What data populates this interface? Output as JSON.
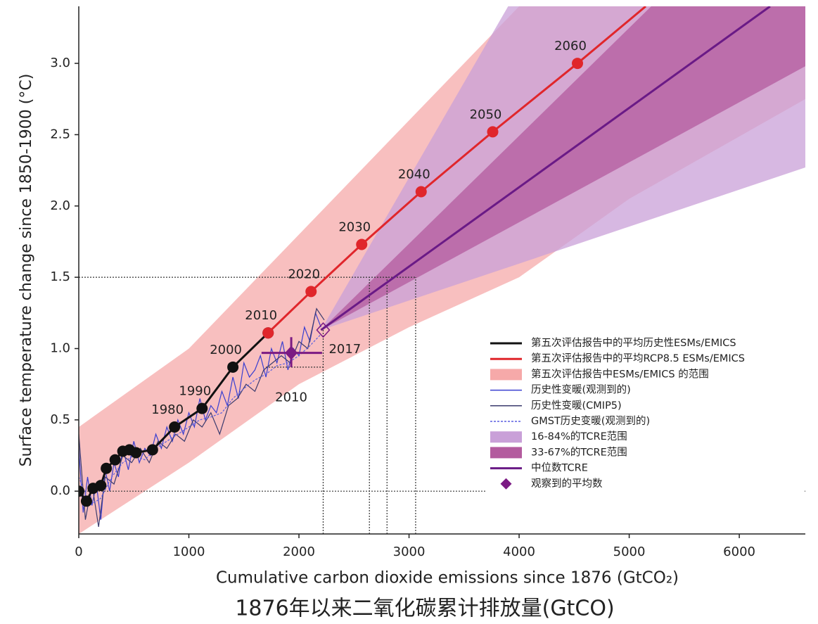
{
  "chart_data": {
    "type": "line",
    "ylabel": "Surface temperature change since 1850-1900 (°C)",
    "xlabel": "Cumulative carbon dioxide emissions since 1876 (GtCO₂)",
    "caption": "1876年以来二氧化碳累计排放量(GtCO)",
    "xlim": [
      0,
      6600
    ],
    "ylim": [
      -0.3,
      3.4
    ],
    "xticks": [
      0,
      1000,
      2000,
      3000,
      4000,
      5000,
      6000
    ],
    "yticks": [
      {
        "value": 0,
        "label": "0.0"
      },
      0.5,
      {
        "value": 1,
        "label": "1.0"
      },
      1.5,
      {
        "value": 2,
        "label": "2.0"
      },
      2.5,
      {
        "value": 3,
        "label": "3.0"
      }
    ],
    "series": [
      {
        "name": "第五次评估报告中的平均历史性ESMs/EMICS",
        "kind": "line",
        "color": "#111111",
        "x": [
          0,
          70,
          130,
          200,
          250,
          330,
          400,
          460,
          520,
          670,
          870,
          1120,
          1400,
          1720
        ],
        "y": [
          0,
          -0.07,
          0.02,
          0.04,
          0.16,
          0.22,
          0.28,
          0.29,
          0.27,
          0.29,
          0.45,
          0.58,
          0.87,
          1.11
        ],
        "point_labels": [
          null,
          null,
          null,
          null,
          null,
          null,
          null,
          null,
          null,
          null,
          "1980",
          "1990",
          "2000",
          null
        ]
      },
      {
        "name": "第五次评估报告中的平均RCP8.5 ESMs/EMICS",
        "kind": "line",
        "color": "#e0262b",
        "x": [
          1720,
          2110,
          2570,
          3110,
          3760,
          4530,
          5150
        ],
        "y": [
          1.11,
          1.4,
          1.73,
          2.1,
          2.52,
          3.0,
          3.4
        ],
        "point_labels": [
          "2010",
          "2020",
          "2030",
          "2040",
          "2050",
          "2060",
          null
        ]
      },
      {
        "name": "第五次评估报告中ESMs/EMICS 的范围",
        "kind": "band",
        "color": "#f6a9a9",
        "x": [
          0,
          1000,
          2000,
          3000,
          4000,
          5000,
          6600
        ],
        "upper": [
          0.45,
          1.0,
          1.8,
          2.6,
          3.4,
          3.4,
          3.4
        ],
        "lower": [
          -0.3,
          0.2,
          0.75,
          1.15,
          1.5,
          2.05,
          2.75
        ]
      },
      {
        "name": "历史性变暖(观测到的)",
        "kind": "thin",
        "color": "#3a3fd0",
        "x": [
          0,
          40,
          80,
          120,
          160,
          200,
          240,
          280,
          320,
          360,
          400,
          450,
          500,
          550,
          600,
          650,
          700,
          750,
          800,
          850,
          900,
          950,
          1000,
          1050,
          1100,
          1150,
          1200,
          1250,
          1300,
          1350,
          1400,
          1450,
          1500,
          1550,
          1600,
          1650,
          1700,
          1750,
          1800,
          1850,
          1900,
          1950,
          2000,
          2050,
          2100,
          2150,
          2200
        ],
        "y": [
          0.3,
          -0.15,
          0.1,
          -0.1,
          0.05,
          -0.2,
          0.15,
          0,
          0.2,
          0.1,
          0.3,
          0.15,
          0.35,
          0.2,
          0.3,
          0.25,
          0.4,
          0.3,
          0.45,
          0.35,
          0.5,
          0.4,
          0.55,
          0.45,
          0.65,
          0.5,
          0.6,
          0.55,
          0.7,
          0.6,
          0.8,
          0.65,
          0.9,
          0.8,
          0.85,
          0.95,
          0.8,
          1.0,
          0.9,
          1.05,
          0.85,
          1.0,
          0.95,
          1.15,
          1.05,
          1.25,
          1.15
        ]
      },
      {
        "name": "历史性变暖(CMIP5)",
        "kind": "thin",
        "color": "#3b3b6e",
        "x": [
          0,
          60,
          120,
          180,
          240,
          320,
          400,
          480,
          560,
          640,
          720,
          800,
          880,
          960,
          1040,
          1120,
          1200,
          1280,
          1360,
          1440,
          1520,
          1600,
          1680,
          1760,
          1840,
          1920,
          2000,
          2080,
          2160,
          2230
        ],
        "y": [
          0.4,
          -0.2,
          0.05,
          -0.25,
          0.1,
          0.05,
          0.25,
          0.2,
          0.3,
          0.2,
          0.35,
          0.3,
          0.4,
          0.35,
          0.5,
          0.45,
          0.55,
          0.4,
          0.6,
          0.65,
          0.75,
          0.7,
          0.85,
          0.9,
          0.95,
          0.9,
          1.05,
          1.0,
          1.28,
          1.2
        ]
      },
      {
        "name": "GMST历史变暖(观测到的)",
        "kind": "dashed",
        "color": "#5a5fe0",
        "x": [
          0,
          100,
          200,
          300,
          400,
          500,
          600,
          700,
          800,
          900,
          1000,
          1100,
          1200,
          1300,
          1400,
          1500,
          1600,
          1700,
          1800,
          1900,
          2000,
          2100,
          2200
        ],
        "y": [
          0.1,
          -0.1,
          -0.05,
          0.1,
          0.2,
          0.25,
          0.22,
          0.3,
          0.35,
          0.4,
          0.45,
          0.5,
          0.52,
          0.55,
          0.65,
          0.72,
          0.78,
          0.82,
          0.88,
          0.9,
          0.95,
          1.02,
          1.1
        ]
      },
      {
        "name": "16-84%的TCRE范围",
        "kind": "band",
        "color": "#c9a0d8",
        "x": [
          2200,
          3900,
          6600
        ],
        "upper": [
          1.13,
          3.4,
          3.4
        ],
        "lower": [
          1.13,
          1.57,
          2.27
        ]
      },
      {
        "name": "33-67%的TCRE范围",
        "kind": "band",
        "color": "#b35b9e",
        "x": [
          2200,
          5200,
          6600
        ],
        "upper": [
          1.13,
          3.4,
          3.4
        ],
        "lower": [
          1.13,
          2.39,
          2.98
        ]
      },
      {
        "name": "中位数TCRE",
        "kind": "line",
        "color": "#6a1a86",
        "x": [
          2200,
          6280
        ],
        "y": [
          1.13,
          3.4
        ]
      },
      {
        "name": "观察到的平均数",
        "kind": "diamond",
        "color": "#7b1a83",
        "x": 1930,
        "y": 0.97,
        "x_range": [
          1660,
          2210
        ],
        "y_range": [
          0.87,
          1.08
        ],
        "label": "2010"
      }
    ],
    "open_marker": {
      "x": 2220,
      "y": 1.13,
      "label": "2017",
      "color": "#7b1a83"
    },
    "reference_lines": [
      {
        "x": [
          0,
          3060
        ],
        "y": [
          1.5,
          1.5
        ]
      },
      {
        "x": [
          0,
          6600
        ],
        "y": [
          0,
          0
        ]
      },
      {
        "x": [
          1700,
          2220
        ],
        "y": [
          0.87,
          0.87
        ]
      },
      {
        "x": [
          2220,
          2220
        ],
        "y": [
          -0.3,
          1.13
        ]
      },
      {
        "x": [
          2640,
          2640
        ],
        "y": [
          -0.3,
          1.5
        ]
      },
      {
        "x": [
          2800,
          2800
        ],
        "y": [
          -0.3,
          1.5
        ]
      },
      {
        "x": [
          3060,
          3060
        ],
        "y": [
          -0.3,
          1.5
        ]
      }
    ]
  }
}
